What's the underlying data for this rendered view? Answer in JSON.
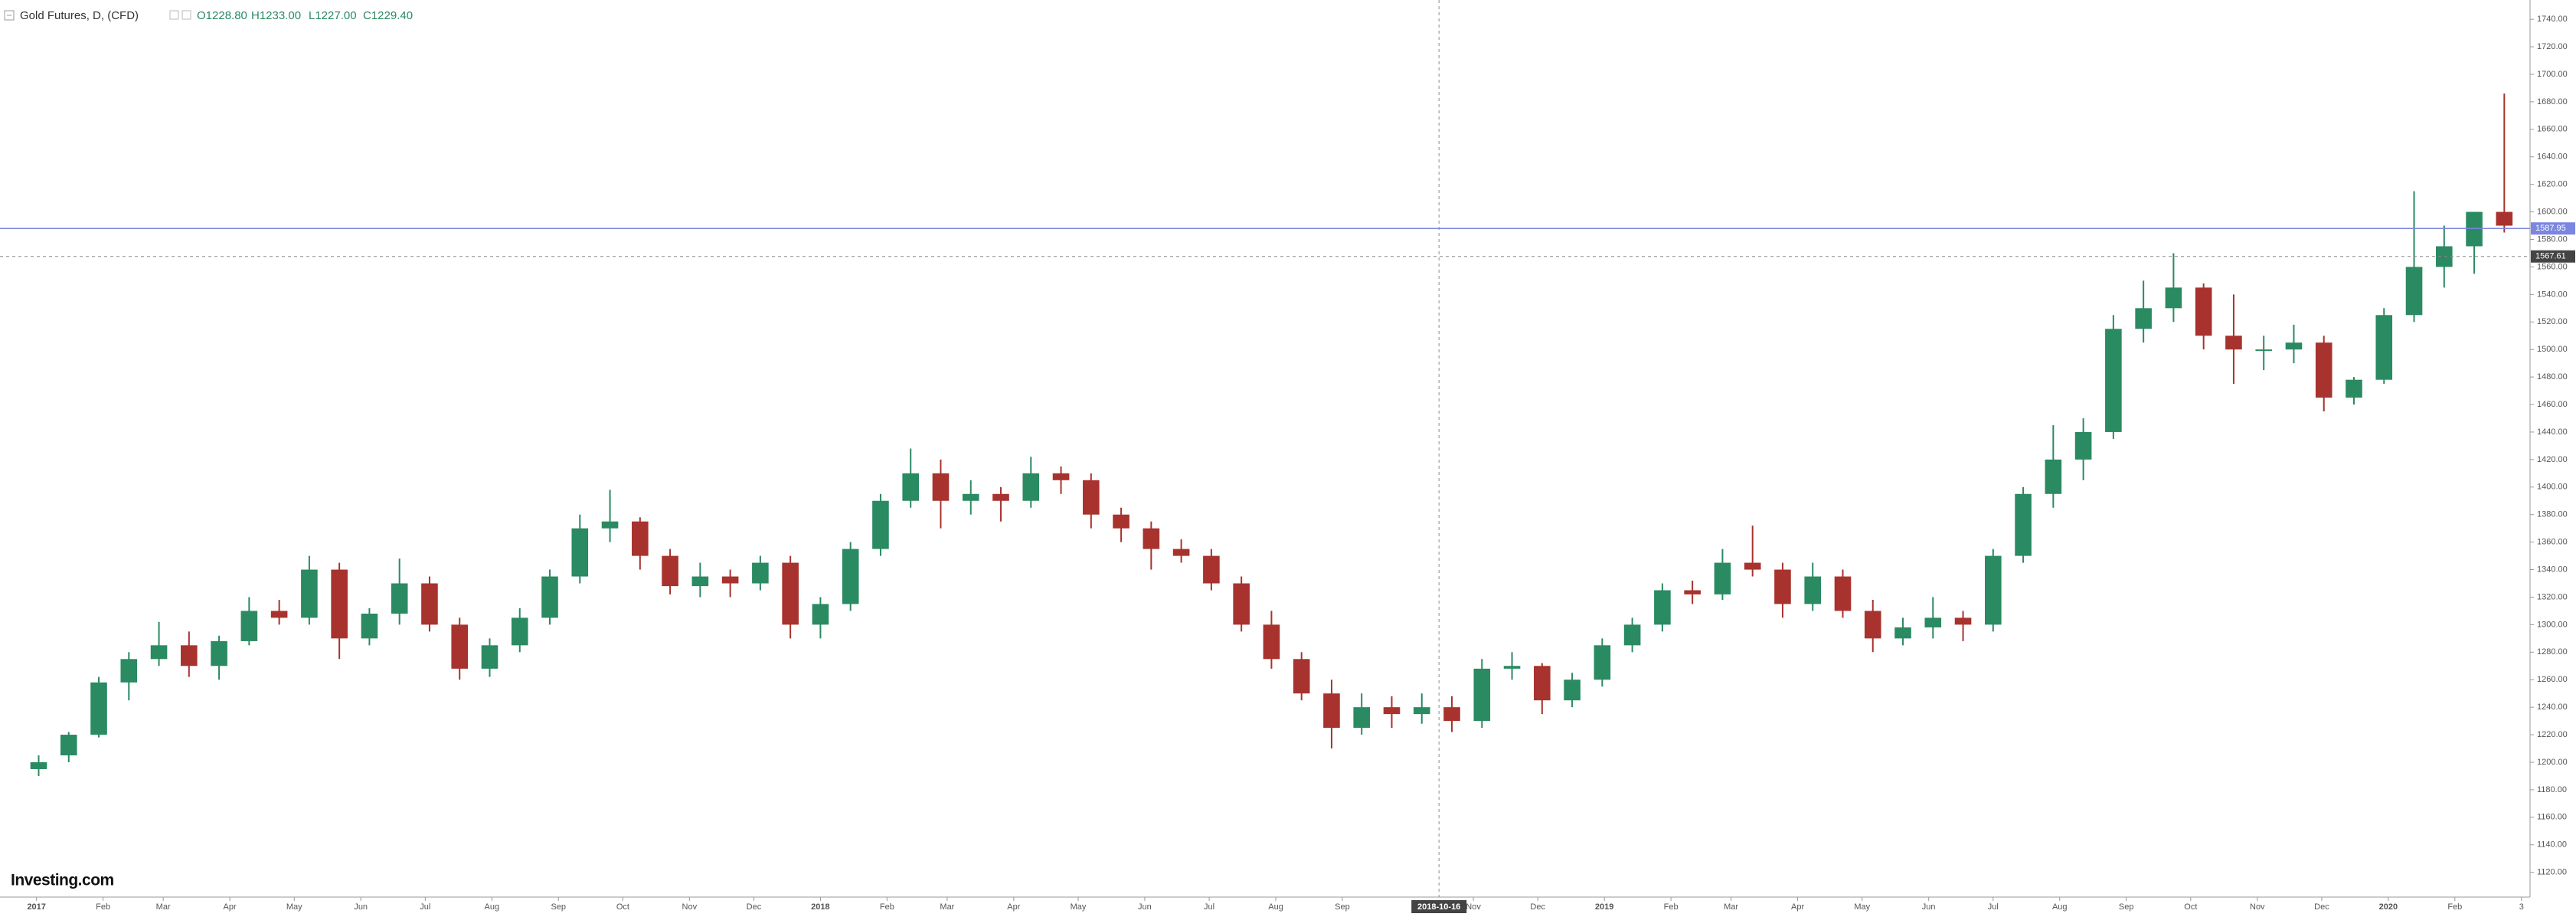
{
  "chart_data": {
    "type": "candlestick",
    "title": "Gold Futures, D, (CFD)",
    "ohlc_labels": [
      "O1228.80",
      "H1233.00",
      "L1227.00",
      "C1229.40"
    ],
    "logo": "Investing.com",
    "colors": {
      "up": "#2a8a62",
      "down": "#a8322d",
      "price_line": "#7b86e0"
    },
    "price_line": 1587.95,
    "crosshair_price": 1567.61,
    "crosshair_x": "2018-10-16",
    "x": [
      "2017-01-02",
      "2017-01-16",
      "2017-01-30",
      "2017-02-13",
      "2017-02-27",
      "2017-03-13",
      "2017-03-27",
      "2017-04-10",
      "2017-04-24",
      "2017-05-08",
      "2017-05-22",
      "2017-06-05",
      "2017-06-19",
      "2017-07-03",
      "2017-07-17",
      "2017-07-31",
      "2017-08-14",
      "2017-08-28",
      "2017-09-11",
      "2017-09-25",
      "2017-10-09",
      "2017-10-23",
      "2017-11-06",
      "2017-11-20",
      "2017-12-04",
      "2017-12-18",
      "2018-01-01",
      "2018-01-15",
      "2018-01-29",
      "2018-02-12",
      "2018-02-26",
      "2018-03-12",
      "2018-03-26",
      "2018-04-09",
      "2018-04-23",
      "2018-05-07",
      "2018-05-21",
      "2018-06-04",
      "2018-06-18",
      "2018-07-02",
      "2018-07-16",
      "2018-07-30",
      "2018-08-13",
      "2018-08-27",
      "2018-09-10",
      "2018-09-24",
      "2018-10-08",
      "2018-10-22",
      "2018-11-05",
      "2018-11-19",
      "2018-12-03",
      "2018-12-17",
      "2018-12-31",
      "2019-01-14",
      "2019-01-28",
      "2019-02-11",
      "2019-02-25",
      "2019-03-11",
      "2019-03-25",
      "2019-04-08",
      "2019-04-22",
      "2019-05-06",
      "2019-05-20",
      "2019-06-03",
      "2019-06-17",
      "2019-07-01",
      "2019-07-15",
      "2019-07-29",
      "2019-08-12",
      "2019-08-26",
      "2019-09-09",
      "2019-09-23",
      "2019-10-07",
      "2019-10-21",
      "2019-11-04",
      "2019-11-18",
      "2019-12-02",
      "2019-12-16",
      "2019-12-30",
      "2020-01-13",
      "2020-01-27",
      "2020-02-10",
      "2020-02-24"
    ],
    "open": [
      1195,
      1205,
      1220,
      1258,
      1275,
      1285,
      1270,
      1288,
      1310,
      1305,
      1340,
      1290,
      1308,
      1330,
      1300,
      1268,
      1285,
      1305,
      1335,
      1370,
      1375,
      1350,
      1328,
      1335,
      1330,
      1345,
      1300,
      1315,
      1355,
      1390,
      1410,
      1390,
      1395,
      1390,
      1410,
      1405,
      1380,
      1370,
      1355,
      1350,
      1330,
      1300,
      1275,
      1250,
      1225,
      1240,
      1235,
      1240,
      1230,
      1268,
      1270,
      1245,
      1260,
      1285,
      1300,
      1325,
      1322,
      1345,
      1340,
      1315,
      1335,
      1310,
      1290,
      1298,
      1305,
      1300,
      1350,
      1395,
      1420,
      1440,
      1515,
      1530,
      1545,
      1510,
      1500,
      1500,
      1505,
      1465,
      1478,
      1525,
      1560,
      1575,
      1600
    ],
    "high": [
      1205,
      1222,
      1262,
      1280,
      1302,
      1295,
      1292,
      1320,
      1318,
      1350,
      1345,
      1312,
      1348,
      1335,
      1305,
      1290,
      1312,
      1340,
      1380,
      1398,
      1378,
      1355,
      1345,
      1340,
      1350,
      1350,
      1320,
      1360,
      1395,
      1428,
      1420,
      1405,
      1400,
      1422,
      1415,
      1410,
      1385,
      1375,
      1362,
      1355,
      1335,
      1310,
      1280,
      1260,
      1250,
      1248,
      1250,
      1248,
      1275,
      1280,
      1272,
      1265,
      1290,
      1305,
      1330,
      1332,
      1355,
      1372,
      1345,
      1345,
      1340,
      1318,
      1305,
      1320,
      1310,
      1355,
      1400,
      1445,
      1450,
      1525,
      1550,
      1570,
      1548,
      1540,
      1510,
      1518,
      1510,
      1480,
      1530,
      1615,
      1590,
      1600,
      1686
    ],
    "low": [
      1190,
      1200,
      1218,
      1245,
      1270,
      1262,
      1260,
      1285,
      1300,
      1300,
      1275,
      1285,
      1300,
      1295,
      1260,
      1262,
      1280,
      1300,
      1330,
      1360,
      1340,
      1322,
      1320,
      1320,
      1325,
      1290,
      1290,
      1310,
      1350,
      1385,
      1370,
      1380,
      1375,
      1385,
      1395,
      1370,
      1360,
      1340,
      1345,
      1325,
      1295,
      1268,
      1245,
      1210,
      1220,
      1225,
      1228,
      1222,
      1225,
      1260,
      1235,
      1240,
      1255,
      1280,
      1295,
      1315,
      1318,
      1335,
      1305,
      1310,
      1305,
      1280,
      1285,
      1290,
      1288,
      1295,
      1345,
      1385,
      1405,
      1435,
      1505,
      1520,
      1500,
      1475,
      1485,
      1490,
      1455,
      1460,
      1475,
      1520,
      1545,
      1555,
      1585
    ],
    "close": [
      1200,
      1220,
      1258,
      1275,
      1285,
      1270,
      1288,
      1310,
      1305,
      1340,
      1290,
      1308,
      1330,
      1300,
      1268,
      1285,
      1305,
      1335,
      1370,
      1375,
      1350,
      1328,
      1335,
      1330,
      1345,
      1300,
      1315,
      1355,
      1390,
      1410,
      1390,
      1395,
      1390,
      1410,
      1405,
      1380,
      1370,
      1355,
      1350,
      1330,
      1300,
      1275,
      1250,
      1225,
      1240,
      1235,
      1240,
      1230,
      1268,
      1270,
      1245,
      1260,
      1285,
      1300,
      1325,
      1322,
      1345,
      1340,
      1315,
      1335,
      1310,
      1290,
      1298,
      1305,
      1300,
      1350,
      1395,
      1420,
      1440,
      1515,
      1530,
      1545,
      1510,
      1500,
      1500,
      1505,
      1465,
      1478,
      1525,
      1560,
      1575,
      1600,
      1590
    ],
    "xlim": [
      "2016-12-15",
      "2020-03-07"
    ],
    "xticks": [
      {
        "value": "2017-01-01",
        "label": "2017"
      },
      {
        "value": "2017-02-01",
        "label": "Feb"
      },
      {
        "value": "2017-03-01",
        "label": "Mar"
      },
      {
        "value": "2017-04-01",
        "label": "Apr"
      },
      {
        "value": "2017-05-01",
        "label": "May"
      },
      {
        "value": "2017-06-01",
        "label": "Jun"
      },
      {
        "value": "2017-07-01",
        "label": "Jul"
      },
      {
        "value": "2017-08-01",
        "label": "Aug"
      },
      {
        "value": "2017-09-01",
        "label": "Sep"
      },
      {
        "value": "2017-10-01",
        "label": "Oct"
      },
      {
        "value": "2017-11-01",
        "label": "Nov"
      },
      {
        "value": "2017-12-01",
        "label": "Dec"
      },
      {
        "value": "2018-01-01",
        "label": "2018"
      },
      {
        "value": "2018-02-01",
        "label": "Feb"
      },
      {
        "value": "2018-03-01",
        "label": "Mar"
      },
      {
        "value": "2018-04-01",
        "label": "Apr"
      },
      {
        "value": "2018-05-01",
        "label": "May"
      },
      {
        "value": "2018-06-01",
        "label": "Jun"
      },
      {
        "value": "2018-07-01",
        "label": "Jul"
      },
      {
        "value": "2018-08-01",
        "label": "Aug"
      },
      {
        "value": "2018-09-01",
        "label": "Sep"
      },
      {
        "value": "2018-11-01",
        "label": "Nov"
      },
      {
        "value": "2018-12-01",
        "label": "Dec"
      },
      {
        "value": "2019-01-01",
        "label": "2019"
      },
      {
        "value": "2019-02-01",
        "label": "Feb"
      },
      {
        "value": "2019-03-01",
        "label": "Mar"
      },
      {
        "value": "2019-04-01",
        "label": "Apr"
      },
      {
        "value": "2019-05-01",
        "label": "May"
      },
      {
        "value": "2019-06-01",
        "label": "Jun"
      },
      {
        "value": "2019-07-01",
        "label": "Jul"
      },
      {
        "value": "2019-08-01",
        "label": "Aug"
      },
      {
        "value": "2019-09-01",
        "label": "Sep"
      },
      {
        "value": "2019-10-01",
        "label": "Oct"
      },
      {
        "value": "2019-11-01",
        "label": "Nov"
      },
      {
        "value": "2019-12-01",
        "label": "Dec"
      },
      {
        "value": "2020-01-01",
        "label": "2020"
      },
      {
        "value": "2020-02-01",
        "label": "Feb"
      },
      {
        "value": "2020-03-03",
        "label": "3"
      }
    ],
    "ylim": [
      1102,
      1754
    ],
    "yticks": [
      {
        "value": 1120,
        "label": "1120.00"
      },
      {
        "value": 1140,
        "label": "1140.00"
      },
      {
        "value": 1160,
        "label": "1160.00"
      },
      {
        "value": 1180,
        "label": "1180.00"
      },
      {
        "value": 1200,
        "label": "1200.00"
      },
      {
        "value": 1220,
        "label": "1220.00"
      },
      {
        "value": 1240,
        "label": "1240.00"
      },
      {
        "value": 1260,
        "label": "1260.00"
      },
      {
        "value": 1280,
        "label": "1280.00"
      },
      {
        "value": 1300,
        "label": "1300.00"
      },
      {
        "value": 1320,
        "label": "1320.00"
      },
      {
        "value": 1340,
        "label": "1340.00"
      },
      {
        "value": 1360,
        "label": "1360.00"
      },
      {
        "value": 1380,
        "label": "1380.00"
      },
      {
        "value": 1400,
        "label": "1400.00"
      },
      {
        "value": 1420,
        "label": "1420.00"
      },
      {
        "value": 1440,
        "label": "1440.00"
      },
      {
        "value": 1460,
        "label": "1460.00"
      },
      {
        "value": 1480,
        "label": "1480.00"
      },
      {
        "value": 1500,
        "label": "1500.00"
      },
      {
        "value": 1520,
        "label": "1520.00"
      },
      {
        "value": 1540,
        "label": "1540.00"
      },
      {
        "value": 1560,
        "label": "1560.00"
      },
      {
        "value": 1580,
        "label": "1580.00"
      },
      {
        "value": 1600,
        "label": "1600.00"
      },
      {
        "value": 1620,
        "label": "1620.00"
      },
      {
        "value": 1640,
        "label": "1640.00"
      },
      {
        "value": 1660,
        "label": "1660.00"
      },
      {
        "value": 1680,
        "label": "1680.00"
      },
      {
        "value": 1700,
        "label": "1700.00"
      },
      {
        "value": 1720,
        "label": "1720.00"
      },
      {
        "value": 1740,
        "label": "1740.00"
      }
    ],
    "grid": false
  }
}
